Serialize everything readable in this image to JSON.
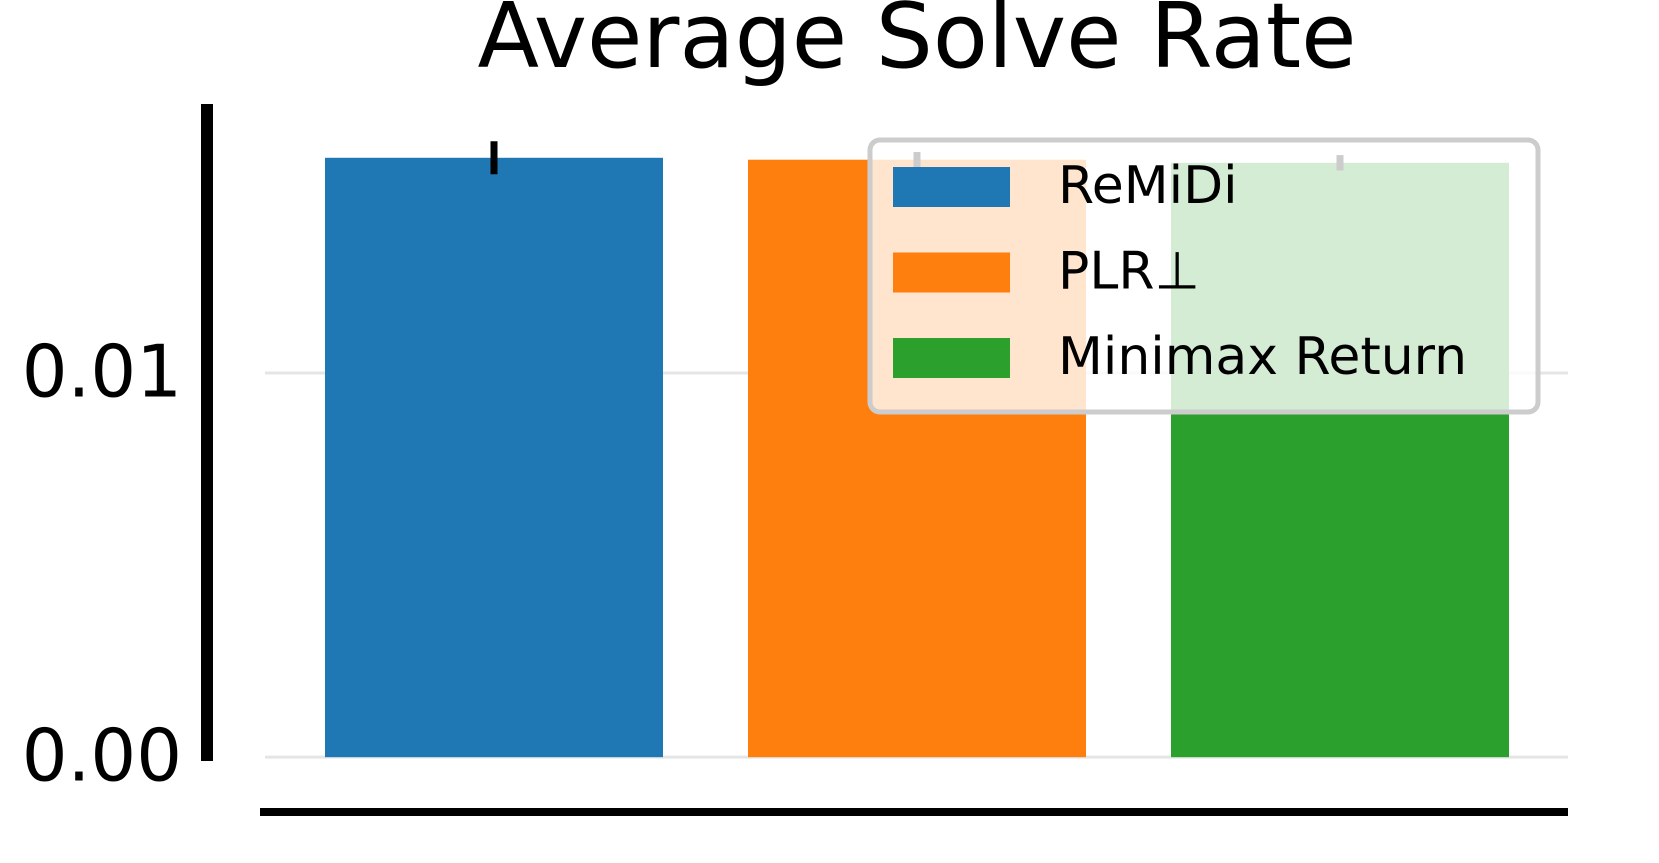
{
  "chart_data": {
    "type": "bar",
    "title": "Average Solve Rate",
    "series": [
      {
        "name": "ReMiDi",
        "color": "#1f77b4",
        "values": [
          0.0156
        ],
        "errors": [
          0.00043
        ]
      },
      {
        "name": "PLR⊥",
        "color": "#ff7f0e",
        "values": [
          0.01555
        ],
        "errors": [
          0.0002
        ]
      },
      {
        "name": "Minimax Return",
        "color": "#2ca02c",
        "values": [
          0.01547
        ],
        "errors": [
          0.0002
        ]
      }
    ],
    "ylim": [
      -0.0001,
      0.017
    ],
    "yticks": [
      {
        "value": 0,
        "label": "0.00"
      },
      {
        "value": 0.01,
        "label": "0.01"
      }
    ],
    "grid": true,
    "legend": "upper right"
  }
}
